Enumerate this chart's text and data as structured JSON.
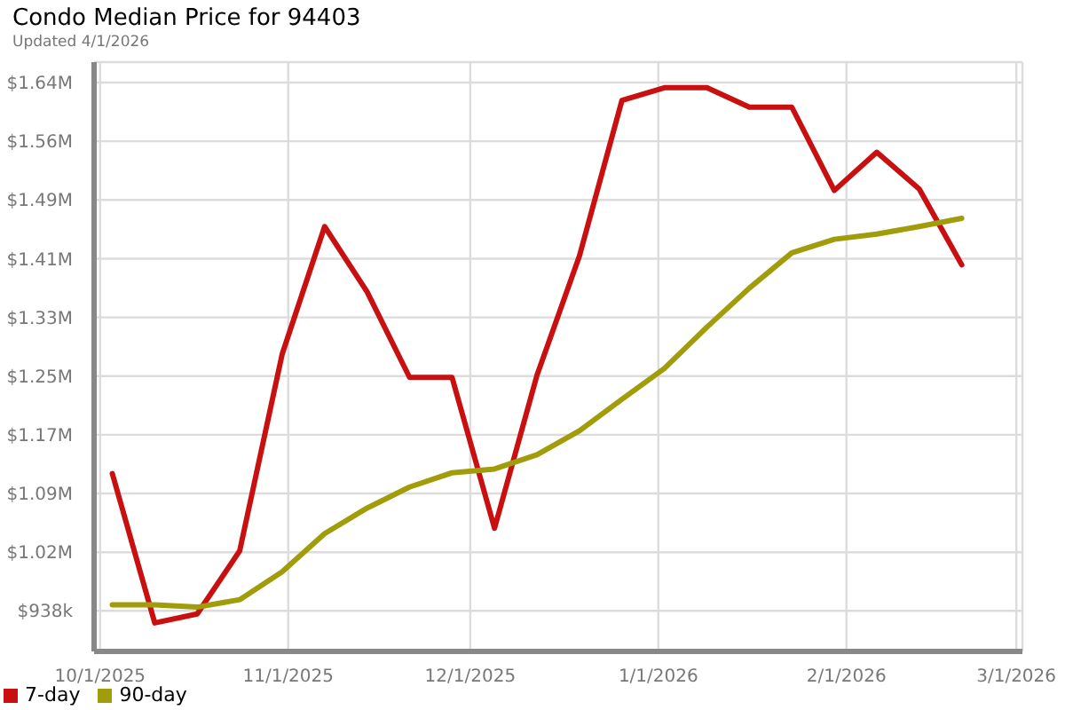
{
  "chart_data": {
    "type": "line",
    "title": "Condo Median Price for 94403",
    "subtitle": "Updated 4/1/2026",
    "x": [
      "2025-10-03",
      "2025-10-10",
      "2025-10-17",
      "2025-10-24",
      "2025-10-31",
      "2025-11-07",
      "2025-11-14",
      "2025-11-21",
      "2025-11-28",
      "2025-12-05",
      "2025-12-12",
      "2025-12-19",
      "2025-12-26",
      "2026-01-02",
      "2026-01-09",
      "2026-01-16",
      "2026-01-23",
      "2026-01-30",
      "2026-02-06",
      "2026-02-13",
      "2026-02-20"
    ],
    "series": [
      {
        "name": "7-day",
        "color": "#c81010",
        "values": [
          1121000,
          922000,
          934000,
          1018000,
          1280000,
          1450000,
          1363000,
          1249000,
          1249000,
          1048000,
          1252000,
          1411000,
          1618000,
          1635000,
          1635000,
          1609000,
          1609000,
          1498000,
          1549000,
          1500000,
          1399000
        ]
      },
      {
        "name": "90-day",
        "color": "#a09c0a",
        "values": [
          946000,
          946000,
          943000,
          953000,
          990000,
          1041000,
          1075000,
          1103000,
          1122000,
          1127000,
          1146000,
          1178000,
          1220000,
          1261000,
          1316000,
          1368000,
          1415000,
          1433000,
          1440000,
          1450000,
          1461000
        ]
      }
    ],
    "xlim": [
      "2025-09-30",
      "2026-03-02"
    ],
    "xticks": [
      {
        "value": "2025-10-01",
        "label": "10/1/2025"
      },
      {
        "value": "2025-11-01",
        "label": "11/1/2025"
      },
      {
        "value": "2025-12-01",
        "label": "12/1/2025"
      },
      {
        "value": "2026-01-01",
        "label": "1/1/2026"
      },
      {
        "value": "2026-02-01",
        "label": "2/1/2026"
      },
      {
        "value": "2026-03-01",
        "label": "3/1/2026"
      }
    ],
    "ylim": [
      884000,
      1669000
    ],
    "yticks": [
      {
        "value": 938000,
        "label": "$938k"
      },
      {
        "value": 1016200,
        "label": "$1.02M"
      },
      {
        "value": 1094400,
        "label": "$1.09M"
      },
      {
        "value": 1172600,
        "label": "$1.17M"
      },
      {
        "value": 1250800,
        "label": "$1.25M"
      },
      {
        "value": 1329000,
        "label": "$1.33M"
      },
      {
        "value": 1407200,
        "label": "$1.41M"
      },
      {
        "value": 1485400,
        "label": "$1.49M"
      },
      {
        "value": 1563600,
        "label": "$1.56M"
      },
      {
        "value": 1641800,
        "label": "$1.64M"
      }
    ],
    "grid": true,
    "legend": "bottom left"
  }
}
